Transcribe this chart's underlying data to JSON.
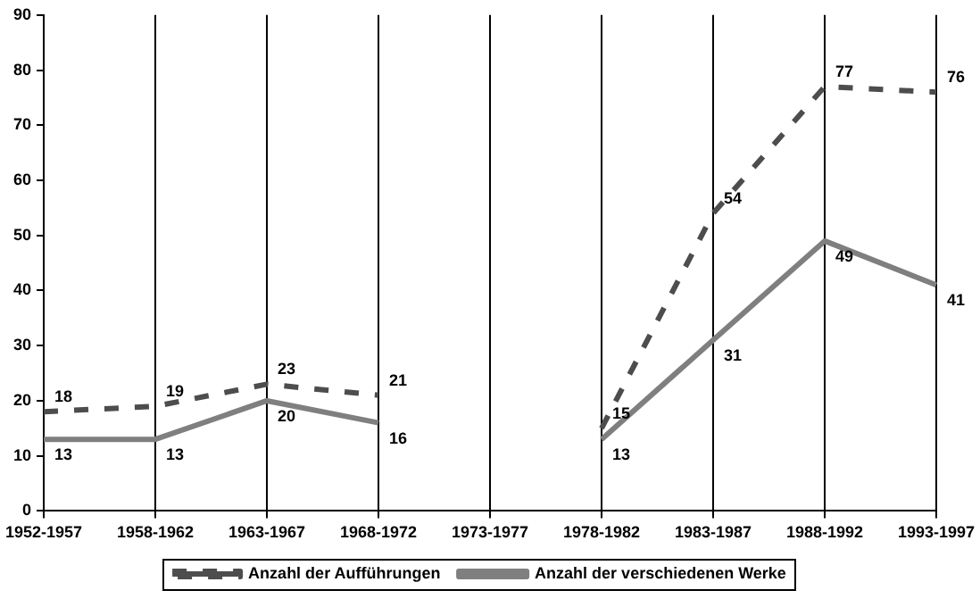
{
  "chart_data": {
    "type": "line",
    "categories": [
      "1952-1957",
      "1958-1962",
      "1963-1967",
      "1968-1972",
      "1973-1977",
      "1978-1982",
      "1983-1987",
      "1988-1992",
      "1993-1997"
    ],
    "series": [
      {
        "name": "Anzahl der Aufführungen",
        "color": "#4d4d4d",
        "line_style": "dashed",
        "values": [
          18,
          19,
          23,
          21,
          null,
          15,
          54,
          77,
          76
        ]
      },
      {
        "name": "Anzahl der verschiedenen Werke",
        "color": "#7f7f7f",
        "line_style": "solid",
        "values": [
          13,
          13,
          20,
          16,
          null,
          13,
          31,
          49,
          41
        ]
      }
    ],
    "ylim": [
      0,
      90
    ],
    "yticks": [
      0,
      10,
      20,
      30,
      40,
      50,
      60,
      70,
      80,
      90
    ],
    "grid": "x",
    "legend": "bottom",
    "marker": "none",
    "data_labels": true
  }
}
